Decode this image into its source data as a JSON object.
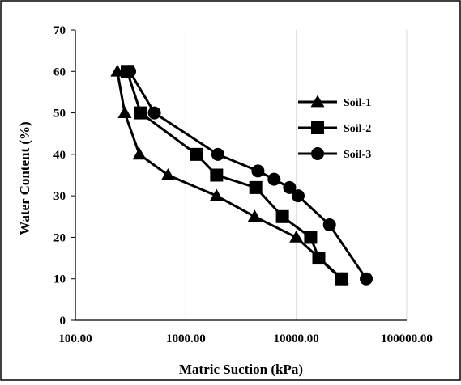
{
  "chart_data": {
    "type": "scatter",
    "title": "",
    "xlabel": "Matric Suction (kPa)",
    "ylabel": "Water Content (%)",
    "x_scale": "log",
    "xlim": [
      100,
      100000
    ],
    "ylim": [
      0,
      70
    ],
    "x_tick_labels": [
      "100.00",
      "1000.00",
      "10000.00",
      "100000.00"
    ],
    "y_tick_labels": [
      "0",
      "10",
      "20",
      "30",
      "40",
      "50",
      "60",
      "70"
    ],
    "grid": "vertical major gridlines only",
    "legend_position": "right",
    "series_style": "lines with markers, black",
    "series": [
      {
        "name": "Soil-1",
        "marker": "triangle",
        "points": [
          {
            "x": 240,
            "y": 60
          },
          {
            "x": 280,
            "y": 50
          },
          {
            "x": 380,
            "y": 40
          },
          {
            "x": 690,
            "y": 35
          },
          {
            "x": 1900,
            "y": 30
          },
          {
            "x": 4200,
            "y": 25
          },
          {
            "x": 10000,
            "y": 20
          },
          {
            "x": 26000,
            "y": 10
          }
        ]
      },
      {
        "name": "Soil-2",
        "marker": "square",
        "points": [
          {
            "x": 295,
            "y": 60
          },
          {
            "x": 390,
            "y": 50
          },
          {
            "x": 1250,
            "y": 40
          },
          {
            "x": 1900,
            "y": 35
          },
          {
            "x": 4300,
            "y": 32
          },
          {
            "x": 7500,
            "y": 25
          },
          {
            "x": 13500,
            "y": 20
          },
          {
            "x": 16000,
            "y": 15
          },
          {
            "x": 25500,
            "y": 10
          }
        ]
      },
      {
        "name": "Soil-3",
        "marker": "circle",
        "points": [
          {
            "x": 310,
            "y": 60
          },
          {
            "x": 520,
            "y": 50
          },
          {
            "x": 1950,
            "y": 40
          },
          {
            "x": 4500,
            "y": 36
          },
          {
            "x": 6300,
            "y": 34
          },
          {
            "x": 8700,
            "y": 32
          },
          {
            "x": 10400,
            "y": 30
          },
          {
            "x": 20000,
            "y": 23
          },
          {
            "x": 43000,
            "y": 10
          }
        ]
      }
    ]
  }
}
